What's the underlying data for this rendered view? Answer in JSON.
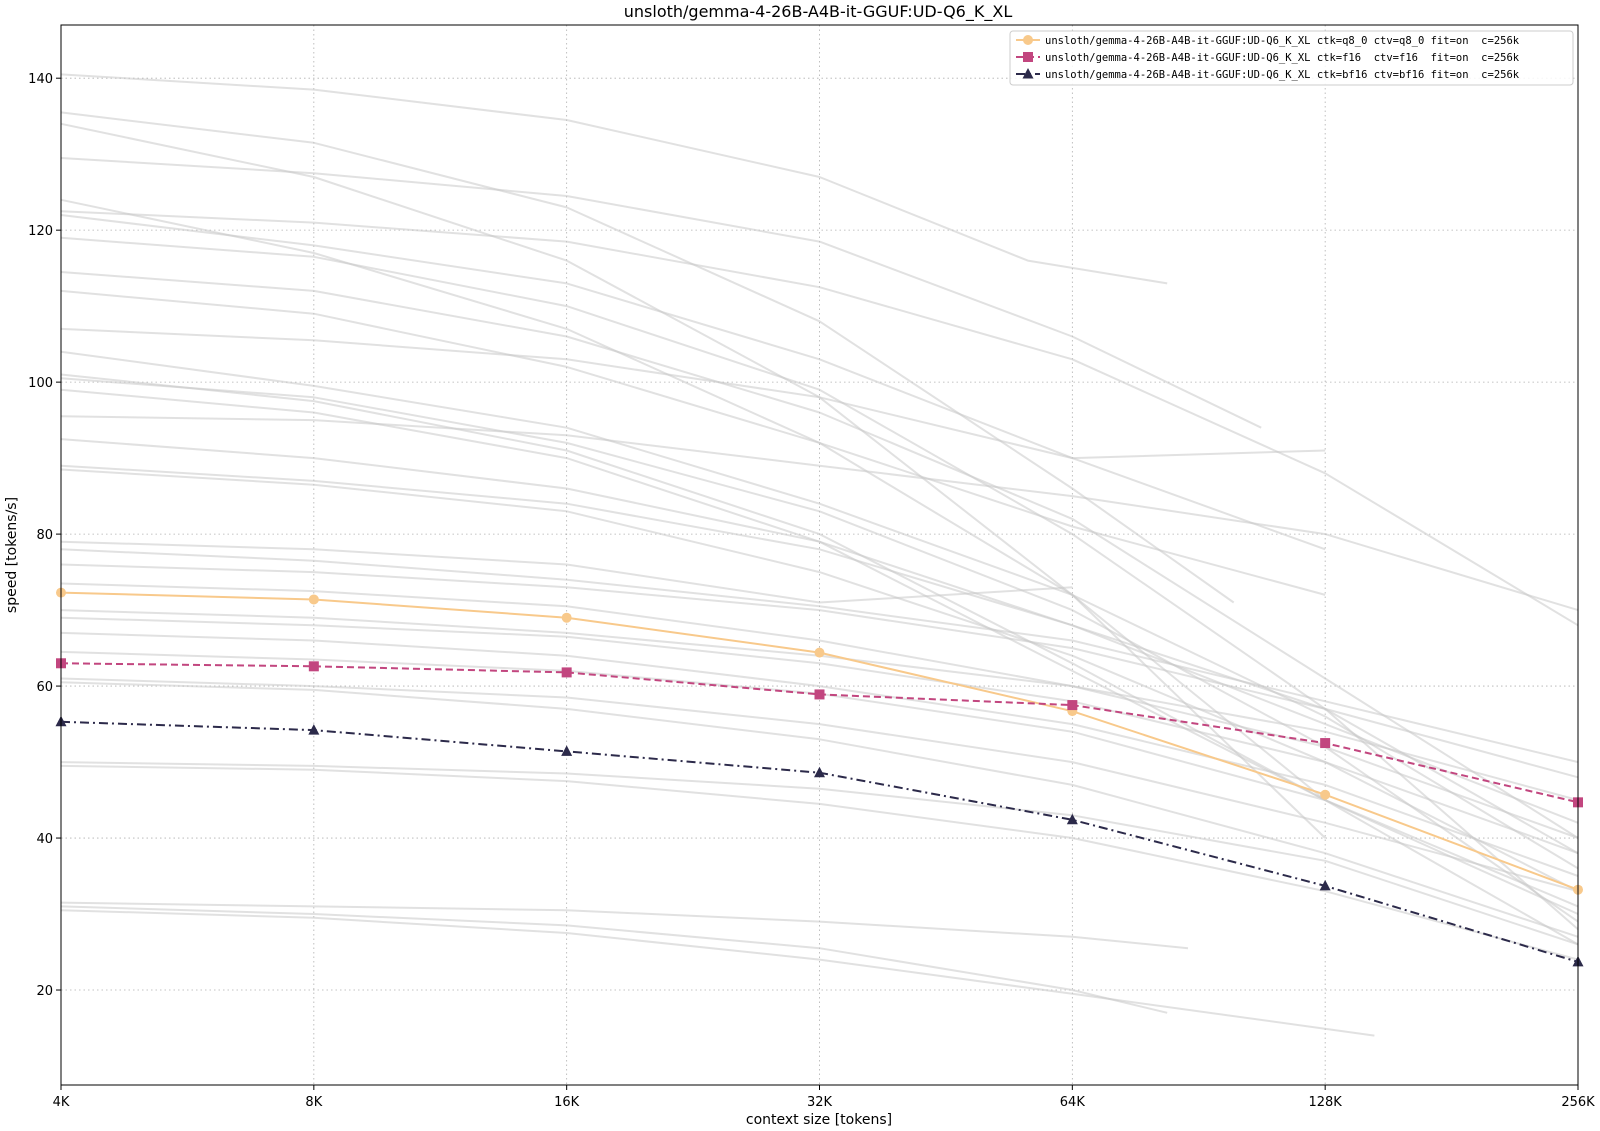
{
  "chart_data": {
    "type": "line",
    "title": "unsloth/gemma-4-26B-A4B-it-GGUF:UD-Q6_K_XL",
    "xlabel": "context size [tokens]",
    "ylabel": "speed [tokens/s]",
    "x_scale": "log2",
    "x": [
      4096,
      8192,
      16384,
      32768,
      65536,
      131072,
      262144
    ],
    "categories": [
      "4K",
      "8K",
      "16K",
      "32K",
      "64K",
      "128K",
      "256K"
    ],
    "xlim": [
      4096,
      262144
    ],
    "ylim": [
      7.5,
      147
    ],
    "yticks": [
      20,
      40,
      60,
      80,
      100,
      120,
      140
    ],
    "grid": true,
    "legend_position": "top-right",
    "series": [
      {
        "name": "unsloth/gemma-4-26B-A4B-it-GGUF:UD-Q6_K_XL ctk=q8_0 ctv=q8_0 fit=on  c=256k",
        "color": "#f8c98b",
        "linestyle": "solid",
        "marker": "circle",
        "values": [
          72.3,
          71.4,
          69.0,
          64.4,
          56.7,
          45.7,
          33.2
        ]
      },
      {
        "name": "unsloth/gemma-4-26B-A4B-it-GGUF:UD-Q6_K_XL ctk=f16  ctv=f16  fit=on  c=256k",
        "color": "#c2467f",
        "linestyle": "dashed",
        "marker": "square",
        "values": [
          63.0,
          62.6,
          61.8,
          58.9,
          57.5,
          52.5,
          44.7
        ]
      },
      {
        "name": "unsloth/gemma-4-26B-A4B-it-GGUF:UD-Q6_K_XL ctk=bf16 ctv=bf16 fit=on  c=256k",
        "color": "#2c2a4a",
        "linestyle": "dashdot",
        "marker": "triangle",
        "values": [
          55.3,
          54.2,
          51.4,
          48.6,
          42.4,
          33.7,
          23.7
        ]
      }
    ],
    "background_series": [
      {
        "x": [
          4096,
          8192,
          16384,
          32768,
          58000,
          85000
        ],
        "values": [
          140.5,
          138.5,
          134.5,
          127.0,
          116.0,
          113.0
        ]
      },
      {
        "x": [
          4096,
          8192,
          16384,
          32768,
          65536,
          102000
        ],
        "values": [
          135.5,
          131.5,
          123.0,
          108.0,
          86.0,
          71.0
        ]
      },
      {
        "x": [
          4096,
          8192,
          16384,
          32768,
          65536,
          131072
        ],
        "values": [
          134.0,
          127.0,
          116.0,
          98.0,
          72.0,
          40.0
        ]
      },
      {
        "x": [
          4096,
          8192,
          16384,
          32768,
          65536,
          110000
        ],
        "values": [
          129.5,
          127.5,
          124.5,
          118.5,
          106.0,
          94.0
        ]
      },
      {
        "x": [
          4096,
          8192,
          16384,
          32768,
          65536,
          131072
        ],
        "values": [
          124.0,
          117.0,
          107.0,
          92.0,
          72.0,
          45.0
        ]
      },
      {
        "x": [
          4096,
          8192,
          16384,
          32768,
          65536,
          131072,
          262144
        ],
        "values": [
          122.5,
          121.0,
          118.5,
          112.5,
          103.0,
          88.0,
          68.0
        ]
      },
      {
        "x": [
          4096,
          8192,
          16384,
          32768,
          65536,
          131072
        ],
        "values": [
          122.0,
          118.0,
          113.0,
          103.0,
          90.0,
          78.0
        ]
      },
      {
        "x": [
          4096,
          8192,
          16384,
          32768,
          65536,
          131072,
          262144
        ],
        "values": [
          119.0,
          116.5,
          110.0,
          99.0,
          80.0,
          57.0,
          28.0
        ]
      },
      {
        "x": [
          4096,
          8192,
          16384,
          32768,
          65536,
          131072,
          262144
        ],
        "values": [
          114.5,
          112.0,
          106.0,
          96.0,
          82.0,
          61.0,
          40.0
        ]
      },
      {
        "x": [
          4096,
          8192,
          16384,
          32768,
          65536,
          131072
        ],
        "values": [
          112.0,
          109.0,
          102.0,
          92.0,
          81.0,
          72.0
        ]
      },
      {
        "x": [
          4096,
          8192,
          16384,
          32768,
          65536,
          131072
        ],
        "values": [
          107.0,
          105.5,
          103.0,
          98.0,
          90.0,
          91.0
        ]
      },
      {
        "x": [
          4096,
          8192,
          16384,
          32768,
          65536,
          131072,
          262144
        ],
        "values": [
          104.0,
          99.5,
          94.0,
          84.0,
          72.0,
          56.0,
          36.0
        ]
      },
      {
        "x": [
          4096,
          8192,
          16384,
          32768,
          65536,
          131072,
          262144
        ],
        "values": [
          101.0,
          97.5,
          91.0,
          80.0,
          63.0,
          45.0,
          30.0
        ]
      },
      {
        "x": [
          4096,
          8192,
          16384,
          32768,
          65536,
          131072,
          262144
        ],
        "values": [
          100.5,
          98.0,
          92.0,
          83.0,
          70.0,
          52.0,
          29.0
        ]
      },
      {
        "x": [
          4096,
          8192,
          16384,
          32768,
          65536,
          131072,
          262144
        ],
        "values": [
          99.0,
          96.0,
          90.0,
          79.0,
          62.0,
          45.0,
          26.0
        ]
      },
      {
        "x": [
          4096,
          8192,
          16384,
          32768,
          65536,
          131072,
          262144
        ],
        "values": [
          95.5,
          95.0,
          93.0,
          89.0,
          85.0,
          80.0,
          70.0
        ]
      },
      {
        "x": [
          4096,
          8192,
          16384,
          32768,
          65536,
          131072,
          262144
        ],
        "values": [
          92.5,
          90.0,
          86.0,
          79.0,
          68.0,
          55.0,
          42.0
        ]
      },
      {
        "x": [
          4096,
          8192,
          16384,
          32768,
          65536,
          131072,
          262144
        ],
        "values": [
          89.0,
          87.0,
          84.0,
          78.0,
          68.0,
          57.0,
          38.0
        ]
      },
      {
        "x": [
          4096,
          8192,
          16384,
          32768,
          65536,
          131072,
          262144
        ],
        "values": [
          88.5,
          86.5,
          83.0,
          75.0,
          64.0,
          50.0,
          33.0
        ]
      },
      {
        "x": [
          4096,
          8192,
          16384,
          32768,
          65536
        ],
        "values": [
          79.0,
          78.0,
          76.0,
          71.0,
          73.0
        ]
      },
      {
        "x": [
          4096,
          8192,
          16384,
          32768,
          65536,
          131072,
          262144
        ],
        "values": [
          78.0,
          76.5,
          74.0,
          70.5,
          66.0,
          58.0,
          50.0
        ]
      },
      {
        "x": [
          4096,
          8192,
          16384,
          32768,
          65536,
          131072,
          262144
        ],
        "values": [
          76.0,
          75.0,
          73.0,
          70.0,
          65.0,
          57.0,
          48.0
        ]
      },
      {
        "x": [
          4096,
          8192,
          16384,
          32768,
          65536,
          131072,
          262144
        ],
        "values": [
          73.5,
          72.5,
          70.5,
          66.0,
          60.0,
          52.0,
          40.0
        ]
      },
      {
        "x": [
          4096,
          8192,
          16384,
          32768,
          65536,
          131072,
          262144
        ],
        "values": [
          70.0,
          69.0,
          67.0,
          64.0,
          60.0,
          54.0,
          45.0
        ]
      },
      {
        "x": [
          4096,
          8192,
          16384,
          32768,
          65536,
          131072,
          262144
        ],
        "values": [
          69.0,
          68.0,
          66.5,
          63.0,
          58.0,
          50.0,
          38.0
        ]
      },
      {
        "x": [
          4096,
          8192,
          16384,
          32768,
          65536,
          131072,
          262144
        ],
        "values": [
          67.0,
          66.0,
          64.0,
          60.0,
          55.0,
          47.0,
          35.0
        ]
      },
      {
        "x": [
          4096,
          8192,
          16384,
          32768,
          65536,
          131072,
          262144
        ],
        "values": [
          64.5,
          63.5,
          62.0,
          59.0,
          54.0,
          45.0,
          31.0
        ]
      },
      {
        "x": [
          4096,
          8192,
          16384,
          32768,
          65536,
          131072,
          262144
        ],
        "values": [
          61.0,
          60.0,
          58.5,
          55.0,
          50.0,
          42.0,
          33.0
        ]
      },
      {
        "x": [
          4096,
          8192,
          16384,
          32768,
          65536,
          131072,
          262144
        ],
        "values": [
          60.5,
          59.5,
          57.0,
          53.0,
          47.0,
          38.0,
          27.0
        ]
      },
      {
        "x": [
          4096,
          8192,
          16384,
          32768,
          65536,
          131072,
          262144
        ],
        "values": [
          50.0,
          49.5,
          48.5,
          46.5,
          43.0,
          37.0,
          26.0
        ]
      },
      {
        "x": [
          4096,
          8192,
          16384,
          32768,
          65536,
          131072,
          262144
        ],
        "values": [
          49.5,
          49.0,
          47.5,
          44.5,
          40.0,
          33.0,
          24.0
        ]
      },
      {
        "x": [
          4096,
          8192,
          16384,
          32768,
          65536,
          90000
        ],
        "values": [
          31.5,
          31.0,
          30.5,
          29.0,
          27.0,
          25.5
        ]
      },
      {
        "x": [
          4096,
          8192,
          16384,
          32768,
          65536,
          85000
        ],
        "values": [
          31.0,
          30.0,
          28.5,
          25.5,
          20.0,
          17.0
        ]
      },
      {
        "x": [
          4096,
          8192,
          16384,
          32768,
          65536,
          150000
        ],
        "values": [
          30.5,
          29.5,
          27.5,
          24.0,
          19.5,
          14.0
        ]
      }
    ]
  }
}
